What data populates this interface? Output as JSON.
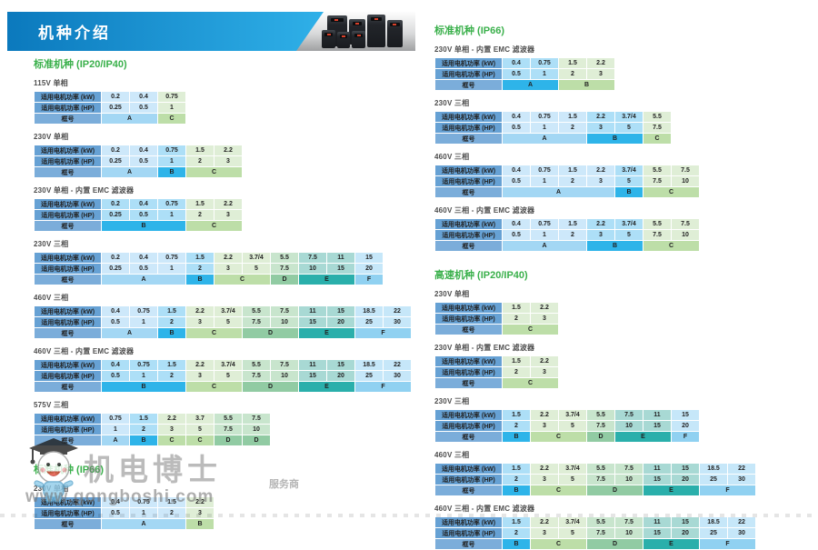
{
  "header": {
    "title": "机种介绍"
  },
  "row_labels": {
    "kw": "适用电机功率 (kW)",
    "hp": "适用电机功率 (HP)",
    "frame": "框号"
  },
  "palette": {
    "banner_from": "#0b79bd",
    "banner_to": "#2fb0e8",
    "heading_green": "#3ab04b",
    "label_bg": "#66a1d4",
    "frame_label_bg": "#7badda",
    "tA": "#cde8fa",
    "tB": "#addff7",
    "tC": "#dfeed6",
    "tD": "#c8e5cd",
    "tE": "#a8d9d4",
    "tF": "#c6e7f9",
    "fA": "#a3d7f4",
    "fB": "#2eb4e9",
    "fC": "#bddea8",
    "fD": "#91cba3",
    "fE": "#2aafab",
    "fF": "#90d1f1"
  },
  "watermark": {
    "brand": "机电博士",
    "tagline": "服务商",
    "url": "www.gongboshi.com"
  },
  "columns": {
    "left": [
      {
        "heading": "标准机种 (IP20/IP40)",
        "tables": [
          {
            "title": "115V 单相",
            "kw": [
              "0.2",
              "0.4",
              "0.75"
            ],
            "hp": [
              "0.25",
              "0.5",
              "1"
            ],
            "tints": [
              "tA",
              "tA",
              "tC"
            ],
            "frames": [
              {
                "label": "A",
                "span": 2,
                "color": "fA"
              },
              {
                "label": "C",
                "span": 1,
                "color": "fC"
              }
            ]
          },
          {
            "title": "230V 单相",
            "kw": [
              "0.2",
              "0.4",
              "0.75",
              "1.5",
              "2.2"
            ],
            "hp": [
              "0.25",
              "0.5",
              "1",
              "2",
              "3"
            ],
            "tints": [
              "tA",
              "tA",
              "tB",
              "tC",
              "tC"
            ],
            "frames": [
              {
                "label": "A",
                "span": 2,
                "color": "fA"
              },
              {
                "label": "B",
                "span": 1,
                "color": "fB"
              },
              {
                "label": "C",
                "span": 2,
                "color": "fC"
              }
            ]
          },
          {
            "title": "230V 单相 - 内置 EMC 滤波器",
            "kw": [
              "0.2",
              "0.4",
              "0.75",
              "1.5",
              "2.2"
            ],
            "hp": [
              "0.25",
              "0.5",
              "1",
              "2",
              "3"
            ],
            "tints": [
              "tB",
              "tB",
              "tB",
              "tC",
              "tC"
            ],
            "frames": [
              {
                "label": "B",
                "span": 3,
                "color": "fB"
              },
              {
                "label": "C",
                "span": 2,
                "color": "fC"
              }
            ]
          },
          {
            "title": "230V 三相",
            "kw": [
              "0.2",
              "0.4",
              "0.75",
              "1.5",
              "2.2",
              "3.7/4",
              "5.5",
              "7.5",
              "11",
              "15"
            ],
            "hp": [
              "0.25",
              "0.5",
              "1",
              "2",
              "3",
              "5",
              "7.5",
              "10",
              "15",
              "20"
            ],
            "tints": [
              "tA",
              "tA",
              "tA",
              "tB",
              "tC",
              "tC",
              "tD",
              "tE",
              "tE",
              "tF"
            ],
            "frames": [
              {
                "label": "A",
                "span": 3,
                "color": "fA"
              },
              {
                "label": "B",
                "span": 1,
                "color": "fB"
              },
              {
                "label": "C",
                "span": 2,
                "color": "fC"
              },
              {
                "label": "D",
                "span": 1,
                "color": "fD"
              },
              {
                "label": "E",
                "span": 2,
                "color": "fE"
              },
              {
                "label": "F",
                "span": 1,
                "color": "fF"
              }
            ]
          },
          {
            "title": "460V 三相",
            "kw": [
              "0.4",
              "0.75",
              "1.5",
              "2.2",
              "3.7/4",
              "5.5",
              "7.5",
              "11",
              "15",
              "18.5",
              "22"
            ],
            "hp": [
              "0.5",
              "1",
              "2",
              "3",
              "5",
              "7.5",
              "10",
              "15",
              "20",
              "25",
              "30"
            ],
            "tints": [
              "tA",
              "tA",
              "tB",
              "tC",
              "tC",
              "tD",
              "tD",
              "tE",
              "tE",
              "tF",
              "tF"
            ],
            "frames": [
              {
                "label": "A",
                "span": 2,
                "color": "fA"
              },
              {
                "label": "B",
                "span": 1,
                "color": "fB"
              },
              {
                "label": "C",
                "span": 2,
                "color": "fC"
              },
              {
                "label": "D",
                "span": 2,
                "color": "fD"
              },
              {
                "label": "E",
                "span": 2,
                "color": "fE"
              },
              {
                "label": "F",
                "span": 2,
                "color": "fF"
              }
            ]
          },
          {
            "title": "460V 三相 - 内置 EMC 滤波器",
            "kw": [
              "0.4",
              "0.75",
              "1.5",
              "2.2",
              "3.7/4",
              "5.5",
              "7.5",
              "11",
              "15",
              "18.5",
              "22"
            ],
            "hp": [
              "0.5",
              "1",
              "2",
              "3",
              "5",
              "7.5",
              "10",
              "15",
              "20",
              "25",
              "30"
            ],
            "tints": [
              "tB",
              "tB",
              "tB",
              "tC",
              "tC",
              "tD",
              "tD",
              "tE",
              "tE",
              "tF",
              "tF"
            ],
            "frames": [
              {
                "label": "B",
                "span": 3,
                "color": "fB"
              },
              {
                "label": "C",
                "span": 2,
                "color": "fC"
              },
              {
                "label": "D",
                "span": 2,
                "color": "fD"
              },
              {
                "label": "E",
                "span": 2,
                "color": "fE"
              },
              {
                "label": "F",
                "span": 2,
                "color": "fF"
              }
            ]
          },
          {
            "title": "575V 三相",
            "kw": [
              "0.75",
              "1.5",
              "2.2",
              "3.7",
              "5.5",
              "7.5"
            ],
            "hp": [
              "1",
              "2",
              "3",
              "5",
              "7.5",
              "10"
            ],
            "tints": [
              "tA",
              "tB",
              "tC",
              "tC",
              "tD",
              "tD"
            ],
            "frames": [
              {
                "label": "A",
                "span": 1,
                "color": "fA"
              },
              {
                "label": "B",
                "span": 1,
                "color": "fB"
              },
              {
                "label": "C",
                "span": 1,
                "color": "fC"
              },
              {
                "label": "C",
                "span": 1,
                "color": "fC"
              },
              {
                "label": "D",
                "span": 1,
                "color": "fD"
              },
              {
                "label": "D",
                "span": 1,
                "color": "fD"
              }
            ]
          }
        ]
      },
      {
        "heading": "标准机种 (IP66)",
        "tables": [
          {
            "title": "230V 单相",
            "kw": [
              "0.4",
              "0.75",
              "1.5",
              "2.2"
            ],
            "hp": [
              "0.5",
              "1",
              "2",
              "3"
            ],
            "tints": [
              "tA",
              "tA",
              "tA",
              "tC"
            ],
            "frames": [
              {
                "label": "A",
                "span": 3,
                "color": "fA"
              },
              {
                "label": "B",
                "span": 1,
                "color": "fC"
              }
            ]
          }
        ]
      }
    ],
    "right": [
      {
        "heading": "标准机种 (IP66)",
        "tables": [
          {
            "title": "230V 单相 - 内置 EMC 滤波器",
            "kw": [
              "0.4",
              "0.75",
              "1.5",
              "2.2"
            ],
            "hp": [
              "0.5",
              "1",
              "2",
              "3"
            ],
            "tints": [
              "tB",
              "tB",
              "tC",
              "tC"
            ],
            "frames": [
              {
                "label": "A",
                "span": 2,
                "color": "fB"
              },
              {
                "label": "B",
                "span": 2,
                "color": "fC"
              }
            ]
          },
          {
            "title": "230V 三相",
            "kw": [
              "0.4",
              "0.75",
              "1.5",
              "2.2",
              "3.7/4",
              "5.5"
            ],
            "hp": [
              "0.5",
              "1",
              "2",
              "3",
              "5",
              "7.5"
            ],
            "tints": [
              "tA",
              "tA",
              "tA",
              "tB",
              "tB",
              "tC"
            ],
            "frames": [
              {
                "label": "A",
                "span": 3,
                "color": "fA"
              },
              {
                "label": "B",
                "span": 2,
                "color": "fB"
              },
              {
                "label": "C",
                "span": 1,
                "color": "fC"
              }
            ]
          },
          {
            "title": "460V 三相",
            "kw": [
              "0.4",
              "0.75",
              "1.5",
              "2.2",
              "3.7/4",
              "5.5",
              "7.5"
            ],
            "hp": [
              "0.5",
              "1",
              "2",
              "3",
              "5",
              "7.5",
              "10"
            ],
            "tints": [
              "tA",
              "tA",
              "tA",
              "tA",
              "tB",
              "tC",
              "tC"
            ],
            "frames": [
              {
                "label": "A",
                "span": 4,
                "color": "fA"
              },
              {
                "label": "B",
                "span": 1,
                "color": "fB"
              },
              {
                "label": "C",
                "span": 2,
                "color": "fC"
              }
            ]
          },
          {
            "title": "460V 三相 - 内置 EMC 滤波器",
            "kw": [
              "0.4",
              "0.75",
              "1.5",
              "2.2",
              "3.7/4",
              "5.5",
              "7.5"
            ],
            "hp": [
              "0.5",
              "1",
              "2",
              "3",
              "5",
              "7.5",
              "10"
            ],
            "tints": [
              "tA",
              "tA",
              "tA",
              "tB",
              "tB",
              "tC",
              "tC"
            ],
            "frames": [
              {
                "label": "A",
                "span": 3,
                "color": "fA"
              },
              {
                "label": "B",
                "span": 2,
                "color": "fB"
              },
              {
                "label": "C",
                "span": 2,
                "color": "fC"
              }
            ]
          }
        ]
      },
      {
        "heading": "高速机种 (IP20/IP40)",
        "tables": [
          {
            "title": "230V 单相",
            "kw": [
              "1.5",
              "2.2"
            ],
            "hp": [
              "2",
              "3"
            ],
            "tints": [
              "tC",
              "tC"
            ],
            "frames": [
              {
                "label": "C",
                "span": 2,
                "color": "fC"
              }
            ]
          },
          {
            "title": "230V 单相 - 内置 EMC 滤波器",
            "kw": [
              "1.5",
              "2.2"
            ],
            "hp": [
              "2",
              "3"
            ],
            "tints": [
              "tC",
              "tC"
            ],
            "frames": [
              {
                "label": "C",
                "span": 2,
                "color": "fC"
              }
            ]
          },
          {
            "title": "230V 三相",
            "kw": [
              "1.5",
              "2.2",
              "3.7/4",
              "5.5",
              "7.5",
              "11",
              "15"
            ],
            "hp": [
              "2",
              "3",
              "5",
              "7.5",
              "10",
              "15",
              "20"
            ],
            "tints": [
              "tB",
              "tC",
              "tC",
              "tD",
              "tE",
              "tE",
              "tF"
            ],
            "frames": [
              {
                "label": "B",
                "span": 1,
                "color": "fB"
              },
              {
                "label": "C",
                "span": 2,
                "color": "fC"
              },
              {
                "label": "D",
                "span": 1,
                "color": "fD"
              },
              {
                "label": "E",
                "span": 2,
                "color": "fE"
              },
              {
                "label": "F",
                "span": 1,
                "color": "fF"
              }
            ]
          },
          {
            "title": "460V 三相",
            "kw": [
              "1.5",
              "2.2",
              "3.7/4",
              "5.5",
              "7.5",
              "11",
              "15",
              "18.5",
              "22"
            ],
            "hp": [
              "2",
              "3",
              "5",
              "7.5",
              "10",
              "15",
              "20",
              "25",
              "30"
            ],
            "tints": [
              "tB",
              "tC",
              "tC",
              "tD",
              "tD",
              "tE",
              "tE",
              "tF",
              "tF"
            ],
            "frames": [
              {
                "label": "B",
                "span": 1,
                "color": "fB"
              },
              {
                "label": "C",
                "span": 2,
                "color": "fC"
              },
              {
                "label": "D",
                "span": 2,
                "color": "fD"
              },
              {
                "label": "E",
                "span": 2,
                "color": "fE"
              },
              {
                "label": "F",
                "span": 2,
                "color": "fF"
              }
            ]
          },
          {
            "title": "460V 三相 - 内置 EMC 滤波器",
            "kw": [
              "1.5",
              "2.2",
              "3.7/4",
              "5.5",
              "7.5",
              "11",
              "15",
              "18.5",
              "22"
            ],
            "hp": [
              "2",
              "3",
              "5",
              "7.5",
              "10",
              "15",
              "20",
              "25",
              "30"
            ],
            "tints": [
              "tB",
              "tC",
              "tC",
              "tD",
              "tD",
              "tE",
              "tE",
              "tF",
              "tF"
            ],
            "frames": [
              {
                "label": "B",
                "span": 1,
                "color": "fB"
              },
              {
                "label": "C",
                "span": 2,
                "color": "fC"
              },
              {
                "label": "D",
                "span": 2,
                "color": "fD"
              },
              {
                "label": "E",
                "span": 2,
                "color": "fE"
              },
              {
                "label": "F",
                "span": 2,
                "color": "fF"
              }
            ]
          }
        ]
      }
    ]
  }
}
